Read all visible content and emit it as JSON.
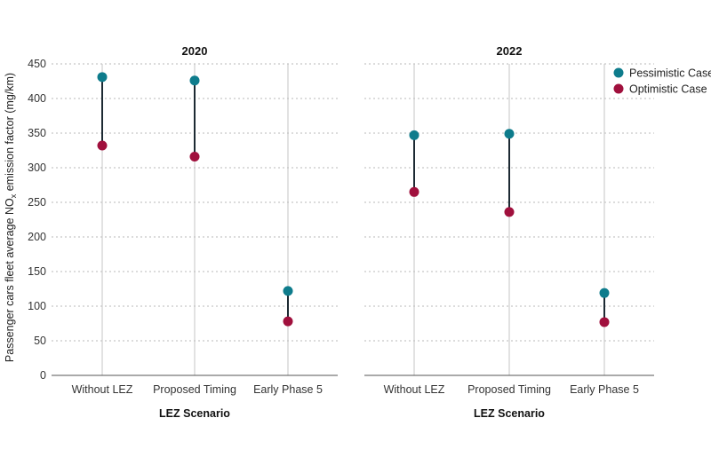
{
  "chart_data": {
    "type": "dumbbell",
    "ylabel_main": "Passenger cars fleet average NO",
    "ylabel_sub": "x",
    "ylabel_tail": " emission factor (mg/km)",
    "ylim": [
      0,
      450
    ],
    "yticks": [
      0,
      50,
      100,
      150,
      200,
      250,
      300,
      350,
      400,
      450
    ],
    "grid": true,
    "legend_position": "top-right",
    "series": [
      {
        "name": "Pessimistic Case",
        "color": "#0e7c8c"
      },
      {
        "name": "Optimistic Case",
        "color": "#a0103d"
      }
    ],
    "panels": [
      {
        "title": "2020",
        "xlabel": "LEZ Scenario",
        "categories": [
          "Without LEZ",
          "Proposed Timing",
          "Early Phase 5"
        ],
        "pessimistic": [
          431,
          426,
          122
        ],
        "optimistic": [
          332,
          316,
          78
        ]
      },
      {
        "title": "2022",
        "xlabel": "LEZ Scenario",
        "categories": [
          "Without LEZ",
          "Proposed Timing",
          "Early Phase 5"
        ],
        "pessimistic": [
          347,
          349,
          119
        ],
        "optimistic": [
          265,
          236,
          77
        ]
      }
    ]
  }
}
